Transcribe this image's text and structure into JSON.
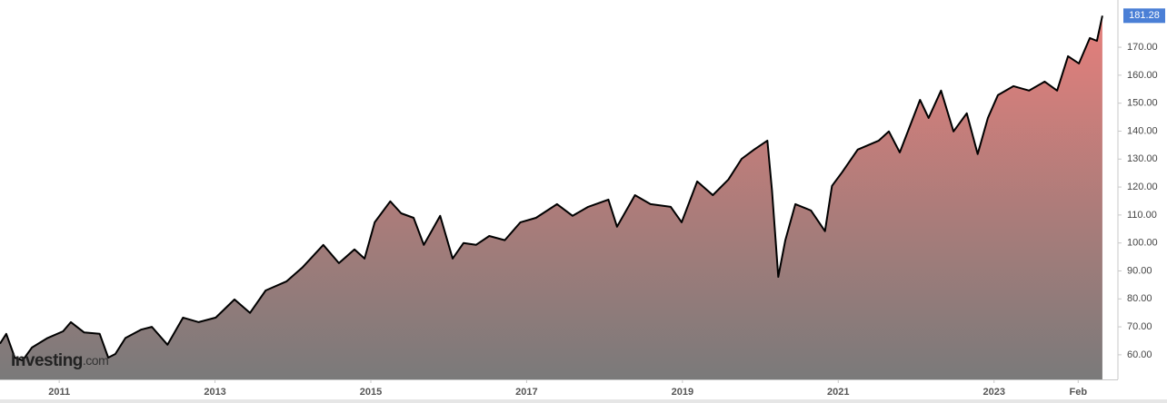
{
  "chart_data": {
    "type": "area",
    "brand": "Investing",
    "brand_suffix": ".com",
    "x": [
      2010.24,
      2010.32,
      2010.43,
      2010.53,
      2010.65,
      2010.85,
      2011.05,
      2011.15,
      2011.32,
      2011.52,
      2011.63,
      2011.72,
      2011.85,
      2012.05,
      2012.19,
      2012.39,
      2012.59,
      2012.79,
      2013.01,
      2013.25,
      2013.45,
      2013.65,
      2013.92,
      2014.12,
      2014.39,
      2014.59,
      2014.79,
      2014.92,
      2015.05,
      2015.25,
      2015.39,
      2015.55,
      2015.68,
      2015.89,
      2016.05,
      2016.19,
      2016.35,
      2016.52,
      2016.72,
      2016.92,
      2017.12,
      2017.39,
      2017.59,
      2017.79,
      2018.05,
      2018.16,
      2018.39,
      2018.59,
      2018.85,
      2018.99,
      2019.19,
      2019.39,
      2019.59,
      2019.76,
      2019.92,
      2020.09,
      2020.15,
      2020.23,
      2020.32,
      2020.45,
      2020.65,
      2020.83,
      2020.92,
      2021.05,
      2021.25,
      2021.52,
      2021.65,
      2021.79,
      2022.05,
      2022.16,
      2022.32,
      2022.48,
      2022.65,
      2022.79,
      2022.92,
      2023.05,
      2023.25,
      2023.45,
      2023.65,
      2023.81,
      2023.95,
      2024.09,
      2024.23,
      2024.32,
      2024.39
    ],
    "series": [
      {
        "color": "#000000",
        "values": [
          64,
          67.5,
          59,
          58,
          62.6,
          66,
          68.4,
          71.7,
          68,
          67.5,
          59,
          60.3,
          66,
          69,
          70,
          63.6,
          73.3,
          71.7,
          73.3,
          79.8,
          75,
          83,
          86.3,
          91.2,
          99.3,
          92.8,
          97.7,
          94.4,
          107.4,
          114.9,
          110.6,
          109,
          99.3,
          109.7,
          94.4,
          100,
          99.3,
          102.5,
          101,
          107.4,
          109,
          113.9,
          109.7,
          112.9,
          115.5,
          105.8,
          117.1,
          113.9,
          112.9,
          107.4,
          122,
          117.1,
          122.7,
          130.1,
          133.4,
          136.6,
          118.8,
          87.9,
          100.9,
          113.9,
          111.6,
          104.2,
          120.4,
          125.3,
          133.4,
          136.6,
          139.9,
          132.4,
          151.2,
          144.7,
          154.5,
          139.9,
          146.4,
          131.8,
          144.7,
          152.9,
          156.1,
          154.5,
          157.7,
          154.5,
          166.8,
          164.2,
          173.3,
          172.3,
          181.28
        ],
        "value_labels": [
          null,
          null,
          null,
          null,
          null,
          null,
          null,
          null,
          null,
          null,
          null,
          null,
          null,
          null,
          null,
          null,
          null,
          null,
          null,
          null,
          null,
          null,
          null,
          null,
          null,
          null,
          null,
          null,
          null,
          null,
          null,
          null,
          null,
          null,
          null,
          null,
          null,
          null,
          null,
          null,
          null,
          null,
          null,
          null,
          null,
          null,
          null,
          null,
          null,
          null,
          null,
          null,
          null,
          null,
          null,
          null,
          null,
          null,
          null,
          null,
          null,
          null,
          null,
          null,
          null,
          null,
          null,
          null,
          null,
          null,
          null,
          null,
          null,
          null,
          null,
          null,
          null,
          null,
          null,
          null,
          null,
          null,
          null,
          null,
          "181.28"
        ]
      }
    ],
    "fill_top": "#e67f7b",
    "fill_bottom": "#7a7a7a",
    "label_color": "#4a7fd6",
    "xlim": [
      2010.24,
      2024.59
    ],
    "xticks": [
      2011,
      2013,
      2015,
      2017,
      2019,
      2021,
      2023,
      {
        "value": 2024.08,
        "label": "Feb"
      }
    ],
    "ylim": [
      51.2,
      186.9
    ],
    "yticks": [
      {
        "value": 60,
        "label": "60.00"
      },
      {
        "value": 70,
        "label": "70.00"
      },
      {
        "value": 80,
        "label": "80.00"
      },
      {
        "value": 90,
        "label": "90.00"
      },
      {
        "value": 100,
        "label": "100.00"
      },
      {
        "value": 110,
        "label": "110.00"
      },
      {
        "value": 120,
        "label": "120.00"
      },
      {
        "value": 130,
        "label": "130.00"
      },
      {
        "value": 140,
        "label": "140.00"
      },
      {
        "value": 150,
        "label": "150.00"
      },
      {
        "value": 160,
        "label": "160.00"
      },
      {
        "value": 170,
        "label": "170.00"
      }
    ],
    "grid": false
  }
}
